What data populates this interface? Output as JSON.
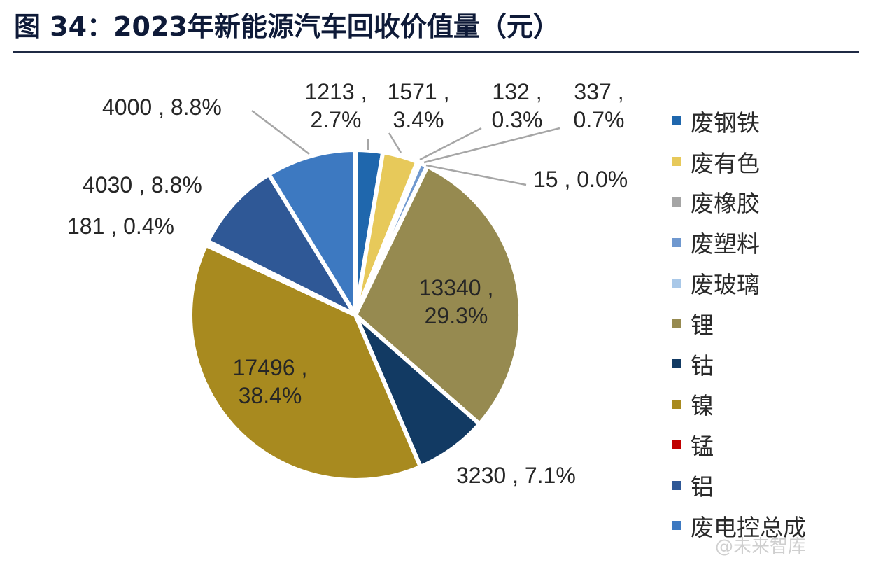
{
  "figure": {
    "title": "图 34：2023年新能源汽车回收价值量（元）",
    "watermark": "@未来智库"
  },
  "chart_data": {
    "type": "pie",
    "title": "图 34：2023年新能源汽车回收价值量（元）",
    "start": "12 o'clock",
    "direction": "clockwise",
    "legend_position": "right",
    "slices": [
      {
        "label": "废钢铁",
        "value": 1213,
        "percent": "2.7%",
        "color": "#1f67ad",
        "data_label": [
          "1213 ,",
          "2.7%"
        ]
      },
      {
        "label": "废有色",
        "value": 1571,
        "percent": "3.4%",
        "color": "#e7c95a",
        "data_label": [
          "1571 ,",
          "3.4%"
        ]
      },
      {
        "label": "废橡胶",
        "value": 132,
        "percent": "0.3%",
        "color": "#a5a5a5",
        "data_label": [
          "132 ,",
          "0.3%"
        ]
      },
      {
        "label": "废塑料",
        "value": 337,
        "percent": "0.7%",
        "color": "#6f98cf",
        "data_label": [
          "337 ,",
          "0.7%"
        ]
      },
      {
        "label": "废玻璃",
        "value": 15,
        "percent": "0.0%",
        "color": "#a9c8e8",
        "data_label": [
          "15 , 0.0%"
        ]
      },
      {
        "label": "锂",
        "value": 13340,
        "percent": "29.3%",
        "color": "#968a50",
        "data_label": [
          "13340 ,",
          "29.3%"
        ]
      },
      {
        "label": "钴",
        "value": 3230,
        "percent": "7.1%",
        "color": "#123a63",
        "data_label": [
          "3230 , 7.1%"
        ]
      },
      {
        "label": "镍",
        "value": 17496,
        "percent": "38.4%",
        "color": "#a88a1f",
        "data_label": [
          "17496 ,",
          "38.4%"
        ]
      },
      {
        "label": "锰",
        "value": 181,
        "percent": "0.4%",
        "color": "#c00000",
        "data_label": [
          "181 , 0.4%"
        ]
      },
      {
        "label": "铝",
        "value": 4030,
        "percent": "8.8%",
        "color": "#2f5896",
        "data_label": [
          "4030 , 8.8%"
        ]
      },
      {
        "label": "废电控总成",
        "value": 4000,
        "percent": "8.8%",
        "color": "#3d79c1",
        "data_label": [
          "4000 , 8.8%"
        ]
      }
    ]
  }
}
